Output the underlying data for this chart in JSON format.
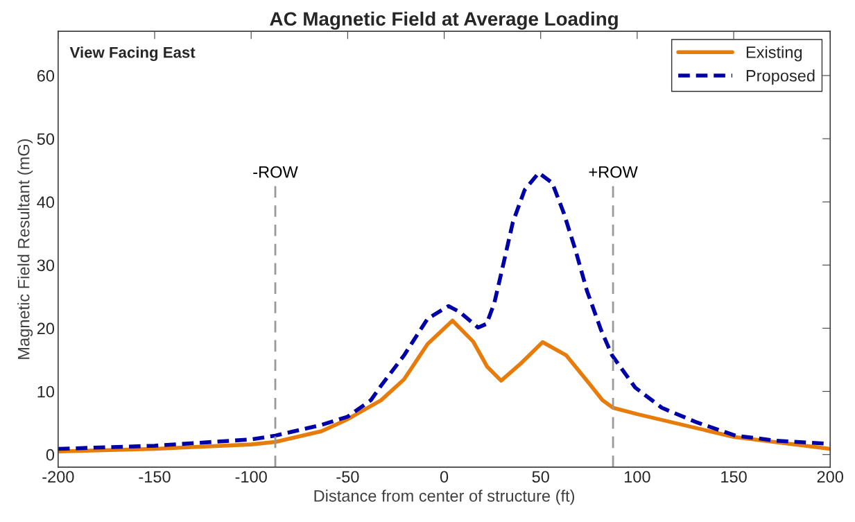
{
  "chart_data": {
    "type": "line",
    "title": "AC Magnetic Field at Average Loading",
    "xlabel": "Distance from center of structure (ft)",
    "ylabel": "Magnetic Field Resultant (mG)",
    "annotations": [
      "View Facing East"
    ],
    "xlim": [
      -200,
      200
    ],
    "xticks": [
      -200,
      -150,
      -100,
      -50,
      0,
      50,
      100,
      150,
      200
    ],
    "ylim": [
      -2,
      67
    ],
    "yticks": [
      0,
      10,
      20,
      30,
      40,
      50,
      60
    ],
    "grid": false,
    "legend": "top right",
    "ref_lines": [
      {
        "axis": "x",
        "value": -87.5,
        "label": "-ROW",
        "color": "#999999",
        "line_style": "dashed"
      },
      {
        "axis": "x",
        "value": 87.5,
        "label": "+ROW",
        "color": "#999999",
        "line_style": "dashed"
      }
    ],
    "series": [
      {
        "name": "Existing",
        "color": "#e87c0b",
        "line_style": "solid",
        "x": [
          -200,
          -150,
          -100,
          -87.5,
          -63.5,
          -50,
          -32.7,
          -20.8,
          -8.6,
          4.3,
          15,
          22.3,
          29.5,
          40,
          51,
          63.3,
          75,
          82,
          87.5,
          100,
          150,
          200
        ],
        "values": [
          0.5,
          0.9,
          1.6,
          2.0,
          3.7,
          5.6,
          8.6,
          11.9,
          17.5,
          21.2,
          17.9,
          13.9,
          11.7,
          14.5,
          17.8,
          15.7,
          11.3,
          8.6,
          7.4,
          6.4,
          2.8,
          0.9
        ]
      },
      {
        "name": "Proposed",
        "color": "#0000a8",
        "line_style": "dashed",
        "x": [
          -200,
          -150,
          -100,
          -87.5,
          -63.5,
          -50,
          -38,
          -32.7,
          -20.8,
          -8.6,
          2.2,
          7.9,
          17.6,
          22,
          26,
          31,
          35.6,
          41.7,
          49,
          56,
          62,
          68,
          74,
          81.3,
          87,
          99,
          112.8,
          130.8,
          151,
          172,
          200
        ],
        "values": [
          0.9,
          1.4,
          2.4,
          3.0,
          4.7,
          6.0,
          8.6,
          10.9,
          15.7,
          21.5,
          23.5,
          22.6,
          20.1,
          20.7,
          24,
          30.6,
          36.8,
          41.9,
          44.6,
          43,
          38.2,
          32.4,
          25.9,
          19.7,
          15.7,
          10.6,
          7.4,
          5.1,
          3.0,
          2.2,
          1.7
        ]
      }
    ]
  }
}
